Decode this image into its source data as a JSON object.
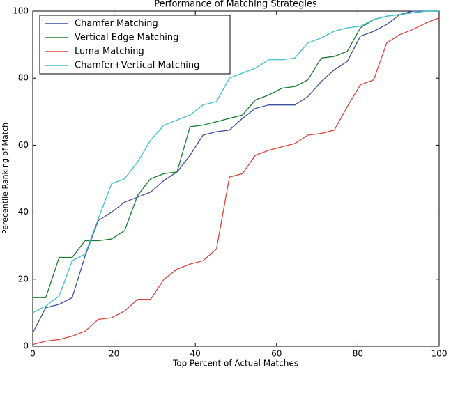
{
  "chart_data": {
    "type": "line",
    "title": "Performance of Matching Strategies",
    "xlabel": "Top Percent of Actual Matches",
    "ylabel": "Perecentile Ranking of Match",
    "x": [
      0,
      3.2,
      6.5,
      9.7,
      12.9,
      16.1,
      19.4,
      22.6,
      25.8,
      29,
      32.3,
      35.5,
      38.7,
      41.9,
      45.2,
      48.4,
      51.6,
      54.8,
      58.1,
      61.3,
      64.5,
      67.7,
      71,
      74.2,
      77.4,
      80.6,
      83.9,
      87.1,
      90.3,
      93.5,
      96.8,
      100
    ],
    "series": [
      {
        "name": "Chamfer Matching",
        "color": "#3f4fa0",
        "values": [
          4,
          11.5,
          12.5,
          14.5,
          27,
          37.5,
          40,
          43,
          44.5,
          46,
          49.5,
          52,
          57,
          63,
          64,
          64.5,
          68,
          71,
          72,
          72,
          72,
          74.5,
          79,
          82.5,
          85,
          92.5,
          94,
          96,
          99,
          100,
          100,
          100
        ]
      },
      {
        "name": "Vertical Edge Matching",
        "color": "#1a7a2e",
        "values": [
          14.5,
          14.5,
          26.5,
          26.5,
          31.5,
          31.5,
          32,
          34.5,
          45,
          50,
          51.5,
          52,
          65.5,
          66,
          67,
          68,
          69,
          73.5,
          75,
          77,
          77.5,
          79.5,
          86,
          86.5,
          88,
          95,
          97.5,
          98.5,
          99,
          99.5,
          100,
          100
        ]
      },
      {
        "name": "Luma Matching",
        "color": "#d9443a",
        "values": [
          0.5,
          1.5,
          2,
          3,
          4.5,
          8,
          8.5,
          10.5,
          14,
          14,
          20,
          23,
          24.5,
          25.5,
          29,
          50.5,
          51.5,
          57,
          58.5,
          59.5,
          60.5,
          63,
          63.5,
          64.5,
          71.5,
          78,
          79.5,
          90.5,
          93,
          94.5,
          96.5,
          98
        ]
      },
      {
        "name": "Chamfer+Vertical Matching",
        "color": "#3fbfca",
        "values": [
          10,
          12,
          15,
          25.5,
          27.5,
          38,
          48.5,
          50,
          55,
          61.5,
          66,
          67.5,
          69,
          72,
          73,
          80,
          81.5,
          83,
          85.5,
          85.5,
          86,
          90.5,
          92,
          94,
          95,
          95.5,
          97.5,
          98.5,
          99,
          99.5,
          100,
          100
        ]
      }
    ],
    "xlim": [
      0,
      100
    ],
    "xticks": [
      0,
      20,
      40,
      60,
      80,
      100
    ],
    "ylim": [
      0,
      100
    ],
    "yticks": [
      0,
      20,
      40,
      60,
      80,
      100
    ],
    "grid": false,
    "legend": "upper left"
  }
}
